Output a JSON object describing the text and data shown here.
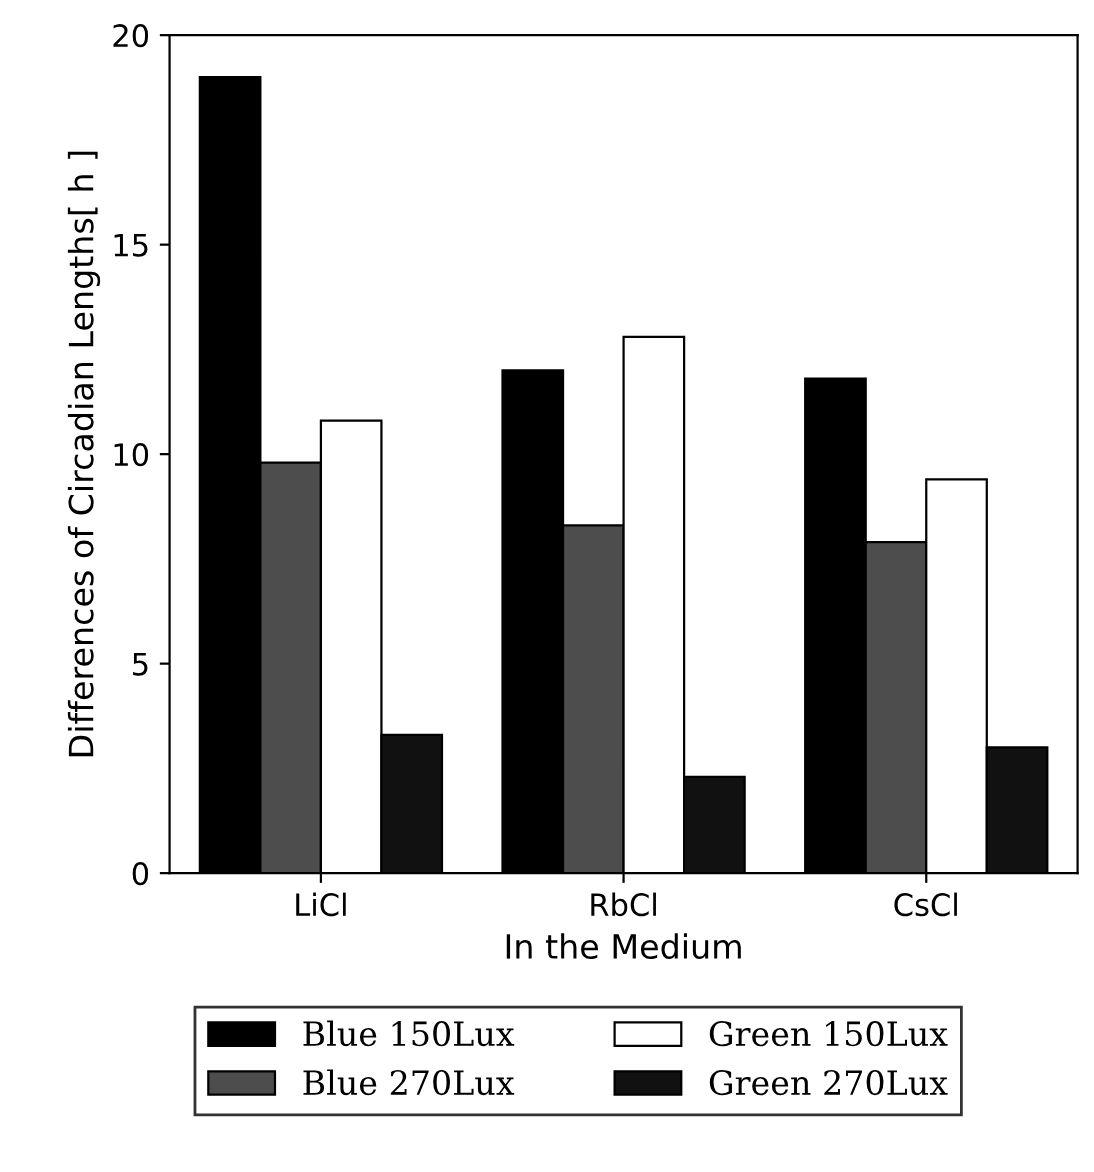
{
  "chart_data": {
    "type": "bar",
    "xlabel": "In the Medium",
    "ylabel": "Differences of Circadian Lengths[ h ]",
    "categories": [
      "LiCl",
      "RbCl",
      "CsCl"
    ],
    "series": [
      {
        "name": "Blue 150Lux",
        "color": "#000000",
        "values": [
          19.0,
          12.0,
          11.8
        ]
      },
      {
        "name": "Blue 270Lux",
        "color": "#4d4d4d",
        "values": [
          9.8,
          8.3,
          7.9
        ]
      },
      {
        "name": "Green 150Lux",
        "color": "#ffffff",
        "values": [
          10.8,
          12.8,
          9.4
        ]
      },
      {
        "name": "Green 270Lux",
        "color": "#111111",
        "values": [
          3.3,
          2.3,
          3.0
        ]
      }
    ],
    "ylim": [
      0,
      20
    ],
    "yticks": [
      0,
      5,
      10,
      15,
      20
    ],
    "grid": false,
    "legend": "bottom"
  }
}
